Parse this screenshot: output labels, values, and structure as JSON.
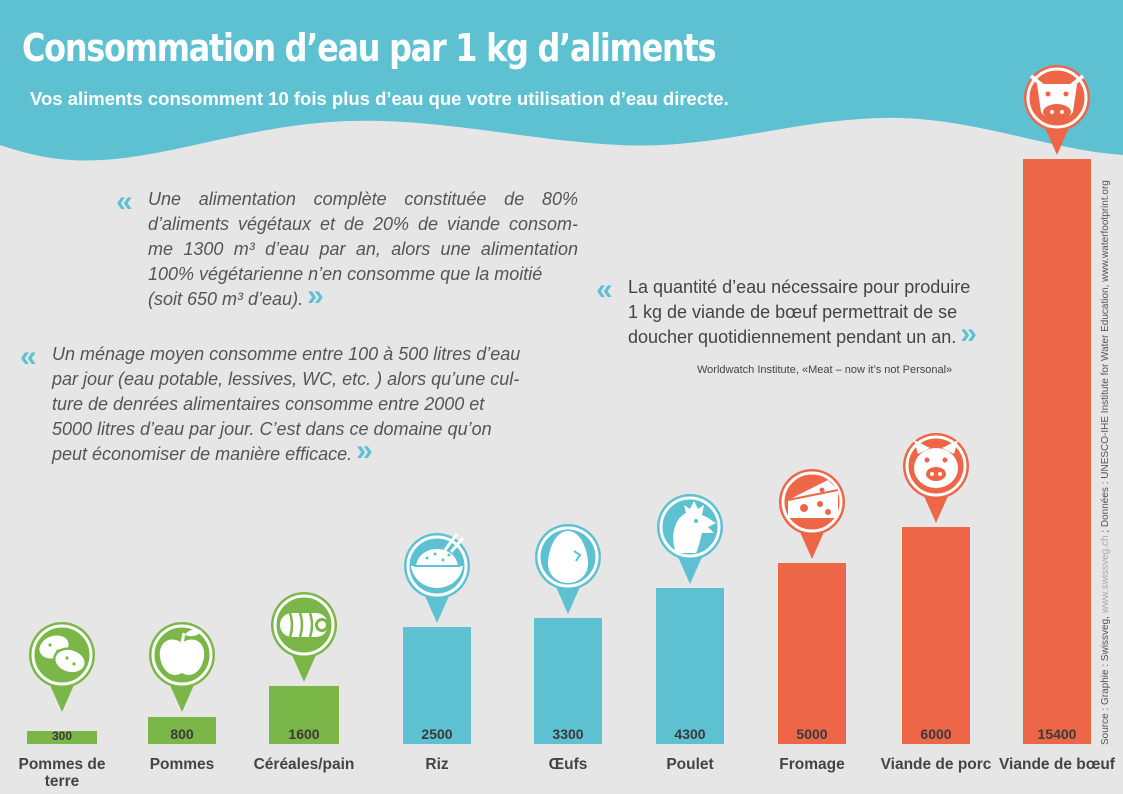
{
  "header": {
    "title": "Consommation d’eau par 1 kg d’aliments",
    "subtitle": "Vos aliments consomment 10 fois plus d’eau que votre utilisation d’eau directe."
  },
  "quotes": {
    "q1_line1": "Une alimentation complète constituée de 80%",
    "q1_line2": "d’aliments végétaux et de 20% de viande consom-",
    "q1_line3": "me 1300 m³ d’eau par an, alors une alimentation",
    "q1_line4": "100% végétarienne n’en consomme que la moitié",
    "q1_line5": "(soit 650 m³ d’eau).",
    "q2_line1": "Un ménage moyen consomme entre 100 à 500 litres d’eau",
    "q2_line2": "par jour (eau potable, lessives, WC, etc. ) alors qu’une cul-",
    "q2_line3": "ture de denrées alimentaires consomme entre 2000 et",
    "q2_line4": "5000 litres d’eau par jour. C’est dans ce domaine qu’on",
    "q2_line5": "peut économiser de manière efficace.",
    "q3_line1": "La quantité d’eau nécessaire pour produire",
    "q3_line2": "1 kg de viande de bœuf permettrait de se",
    "q3_line3": "doucher quotidiennement pendant un an.",
    "credit": "Worldwatch Institute, «Meat – now it’s not Personal»",
    "open_mark": "«",
    "close_mark": "»"
  },
  "source": {
    "prefix": "Source : Graphie : Swissveg, ",
    "faint": "www.swissveg.ch",
    "suffix": " ; Données : UNESCO-IHE Institute for Water Education, www.waterfootprint.org"
  },
  "chart_data": {
    "type": "bar",
    "title": "Consommation d’eau par 1 kg d’aliments",
    "xlabel": "",
    "ylabel": "",
    "categories": [
      "Pommes de terre",
      "Pommes",
      "Céréales/pain",
      "Riz",
      "Œufs",
      "Poulet",
      "Fromage",
      "Viande de porc",
      "Viande de bœuf"
    ],
    "values": [
      300,
      800,
      1600,
      2500,
      3300,
      4300,
      5000,
      6000,
      15400
    ],
    "value_labels": [
      "300",
      "800",
      "1600",
      "2500",
      "3300",
      "4300",
      "5000",
      "6000",
      "15400"
    ],
    "groups": [
      "plant",
      "plant",
      "plant",
      "veg",
      "veg",
      "veg",
      "animal",
      "animal",
      "animal"
    ],
    "icons": [
      "potato-icon",
      "apple-icon",
      "bread-icon",
      "rice-bowl-icon",
      "egg-icon",
      "chicken-icon",
      "cheese-icon",
      "pig-icon",
      "cow-icon"
    ],
    "colors": {
      "plant": "#7ab648",
      "veg": "#5ec1d2",
      "animal": "#ee6648"
    },
    "ylim": [
      0,
      15400
    ],
    "grid": false,
    "legend": "none"
  },
  "colors": {
    "header": "#5ec1d2",
    "background": "#e6e6e6",
    "quote_marks": "#5ec1d2"
  }
}
